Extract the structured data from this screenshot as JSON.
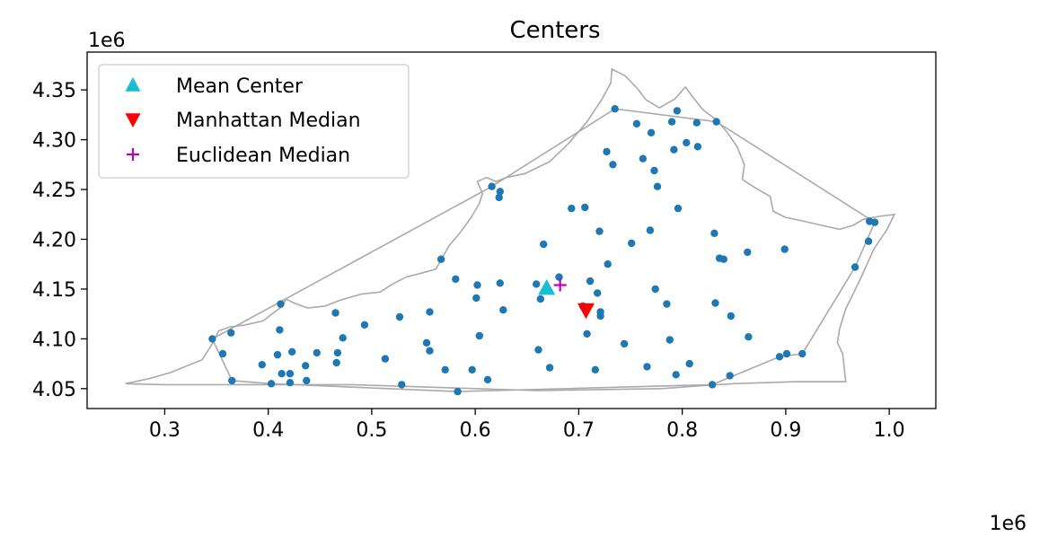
{
  "chart_data": {
    "type": "scatter",
    "title": "Centers",
    "xlabel": "",
    "ylabel": "",
    "x_offset_label": "1e6",
    "y_offset_label": "1e6",
    "xlim": [
      0.225,
      1.045
    ],
    "ylim": [
      4.03,
      4.388
    ],
    "xticks": [
      0.3,
      0.4,
      0.5,
      0.6,
      0.7,
      0.8,
      0.9,
      1.0
    ],
    "xtick_labels": [
      "0.3",
      "0.4",
      "0.5",
      "0.6",
      "0.7",
      "0.8",
      "0.9",
      "1.0"
    ],
    "yticks": [
      4.05,
      4.1,
      4.15,
      4.2,
      4.25,
      4.3,
      4.35
    ],
    "ytick_labels": [
      "4.05",
      "4.10",
      "4.15",
      "4.20",
      "4.25",
      "4.30",
      "4.35"
    ],
    "grid": false,
    "legend_position": "top-left",
    "colors": {
      "points": "#1f77b4",
      "mean_center": "#17becf",
      "manhattan_median": "#ff0000",
      "euclidean_median": "#bf00bf",
      "outline": "#aaaaaa"
    },
    "legend": [
      {
        "label": "Mean Center",
        "marker": "triangle-up",
        "color": "#17becf"
      },
      {
        "label": "Manhattan Median",
        "marker": "triangle-down",
        "color": "#ff0000"
      },
      {
        "label": "Euclidean Median",
        "marker": "plus",
        "color": "#bf00bf"
      }
    ],
    "centers": {
      "mean_center": {
        "x": 0.669,
        "y": 4.151
      },
      "manhattan_median": {
        "x": 0.707,
        "y": 4.129
      },
      "euclidean_median": {
        "x": 0.682,
        "y": 4.154
      }
    },
    "points": [
      {
        "x": 0.346,
        "y": 4.1
      },
      {
        "x": 0.356,
        "y": 4.085
      },
      {
        "x": 0.364,
        "y": 4.106
      },
      {
        "x": 0.365,
        "y": 4.058
      },
      {
        "x": 0.394,
        "y": 4.074
      },
      {
        "x": 0.403,
        "y": 4.055
      },
      {
        "x": 0.409,
        "y": 4.084
      },
      {
        "x": 0.411,
        "y": 4.109
      },
      {
        "x": 0.412,
        "y": 4.135
      },
      {
        "x": 0.413,
        "y": 4.065
      },
      {
        "x": 0.421,
        "y": 4.065
      },
      {
        "x": 0.421,
        "y": 4.056
      },
      {
        "x": 0.423,
        "y": 4.087
      },
      {
        "x": 0.436,
        "y": 4.073
      },
      {
        "x": 0.437,
        "y": 4.058
      },
      {
        "x": 0.447,
        "y": 4.086
      },
      {
        "x": 0.465,
        "y": 4.126
      },
      {
        "x": 0.466,
        "y": 4.076
      },
      {
        "x": 0.467,
        "y": 4.086
      },
      {
        "x": 0.472,
        "y": 4.101
      },
      {
        "x": 0.493,
        "y": 4.114
      },
      {
        "x": 0.513,
        "y": 4.08
      },
      {
        "x": 0.527,
        "y": 4.122
      },
      {
        "x": 0.529,
        "y": 4.054
      },
      {
        "x": 0.553,
        "y": 4.096
      },
      {
        "x": 0.556,
        "y": 4.088
      },
      {
        "x": 0.556,
        "y": 4.127
      },
      {
        "x": 0.567,
        "y": 4.18
      },
      {
        "x": 0.571,
        "y": 4.069
      },
      {
        "x": 0.581,
        "y": 4.16
      },
      {
        "x": 0.583,
        "y": 4.047
      },
      {
        "x": 0.597,
        "y": 4.069
      },
      {
        "x": 0.601,
        "y": 4.141
      },
      {
        "x": 0.602,
        "y": 4.154
      },
      {
        "x": 0.604,
        "y": 4.103
      },
      {
        "x": 0.612,
        "y": 4.059
      },
      {
        "x": 0.616,
        "y": 4.253
      },
      {
        "x": 0.623,
        "y": 4.242
      },
      {
        "x": 0.624,
        "y": 4.248
      },
      {
        "x": 0.624,
        "y": 4.156
      },
      {
        "x": 0.627,
        "y": 4.129
      },
      {
        "x": 0.659,
        "y": 4.155
      },
      {
        "x": 0.661,
        "y": 4.089
      },
      {
        "x": 0.663,
        "y": 4.14
      },
      {
        "x": 0.666,
        "y": 4.195
      },
      {
        "x": 0.672,
        "y": 4.071
      },
      {
        "x": 0.681,
        "y": 4.162
      },
      {
        "x": 0.693,
        "y": 4.231
      },
      {
        "x": 0.704,
        "y": 4.133
      },
      {
        "x": 0.706,
        "y": 4.232
      },
      {
        "x": 0.708,
        "y": 4.105
      },
      {
        "x": 0.711,
        "y": 4.158
      },
      {
        "x": 0.716,
        "y": 4.069
      },
      {
        "x": 0.718,
        "y": 4.146
      },
      {
        "x": 0.72,
        "y": 4.208
      },
      {
        "x": 0.721,
        "y": 4.127
      },
      {
        "x": 0.721,
        "y": 4.123
      },
      {
        "x": 0.727,
        "y": 4.288
      },
      {
        "x": 0.728,
        "y": 4.175
      },
      {
        "x": 0.733,
        "y": 4.275
      },
      {
        "x": 0.735,
        "y": 4.331
      },
      {
        "x": 0.744,
        "y": 4.095
      },
      {
        "x": 0.751,
        "y": 4.196
      },
      {
        "x": 0.756,
        "y": 4.316
      },
      {
        "x": 0.762,
        "y": 4.281
      },
      {
        "x": 0.766,
        "y": 4.072
      },
      {
        "x": 0.769,
        "y": 4.209
      },
      {
        "x": 0.77,
        "y": 4.307
      },
      {
        "x": 0.773,
        "y": 4.269
      },
      {
        "x": 0.774,
        "y": 4.15
      },
      {
        "x": 0.776,
        "y": 4.253
      },
      {
        "x": 0.785,
        "y": 4.135
      },
      {
        "x": 0.788,
        "y": 4.099
      },
      {
        "x": 0.79,
        "y": 4.318
      },
      {
        "x": 0.792,
        "y": 4.29
      },
      {
        "x": 0.794,
        "y": 4.064
      },
      {
        "x": 0.795,
        "y": 4.329
      },
      {
        "x": 0.796,
        "y": 4.231
      },
      {
        "x": 0.804,
        "y": 4.297
      },
      {
        "x": 0.807,
        "y": 4.075
      },
      {
        "x": 0.814,
        "y": 4.317
      },
      {
        "x": 0.815,
        "y": 4.293
      },
      {
        "x": 0.829,
        "y": 4.054
      },
      {
        "x": 0.831,
        "y": 4.206
      },
      {
        "x": 0.832,
        "y": 4.136
      },
      {
        "x": 0.833,
        "y": 4.318
      },
      {
        "x": 0.836,
        "y": 4.181
      },
      {
        "x": 0.84,
        "y": 4.18
      },
      {
        "x": 0.846,
        "y": 4.063
      },
      {
        "x": 0.847,
        "y": 4.123
      },
      {
        "x": 0.863,
        "y": 4.187
      },
      {
        "x": 0.864,
        "y": 4.102
      },
      {
        "x": 0.894,
        "y": 4.082
      },
      {
        "x": 0.899,
        "y": 4.19
      },
      {
        "x": 0.901,
        "y": 4.085
      },
      {
        "x": 0.916,
        "y": 4.085
      },
      {
        "x": 0.967,
        "y": 4.172
      },
      {
        "x": 0.98,
        "y": 4.198
      },
      {
        "x": 0.981,
        "y": 4.218
      },
      {
        "x": 0.986,
        "y": 4.217
      }
    ],
    "hull": [
      [
        0.365,
        4.058
      ],
      [
        0.403,
        4.055
      ],
      [
        0.583,
        4.047
      ],
      [
        0.829,
        4.054
      ],
      [
        0.894,
        4.082
      ],
      [
        0.916,
        4.085
      ],
      [
        0.967,
        4.172
      ],
      [
        0.986,
        4.217
      ],
      [
        0.833,
        4.318
      ],
      [
        0.735,
        4.331
      ],
      [
        0.616,
        4.253
      ],
      [
        0.346,
        4.1
      ]
    ],
    "state_outline": [
      [
        0.262,
        4.055
      ],
      [
        0.285,
        4.06
      ],
      [
        0.305,
        4.066
      ],
      [
        0.322,
        4.073
      ],
      [
        0.336,
        4.079
      ],
      [
        0.346,
        4.095
      ],
      [
        0.352,
        4.108
      ],
      [
        0.363,
        4.112
      ],
      [
        0.378,
        4.114
      ],
      [
        0.395,
        4.118
      ],
      [
        0.405,
        4.126
      ],
      [
        0.414,
        4.133
      ],
      [
        0.417,
        4.14
      ],
      [
        0.425,
        4.136
      ],
      [
        0.438,
        4.131
      ],
      [
        0.455,
        4.133
      ],
      [
        0.47,
        4.139
      ],
      [
        0.49,
        4.145
      ],
      [
        0.508,
        4.147
      ],
      [
        0.52,
        4.155
      ],
      [
        0.533,
        4.162
      ],
      [
        0.548,
        4.166
      ],
      [
        0.562,
        4.17
      ],
      [
        0.57,
        4.185
      ],
      [
        0.575,
        4.194
      ],
      [
        0.585,
        4.206
      ],
      [
        0.596,
        4.222
      ],
      [
        0.604,
        4.236
      ],
      [
        0.607,
        4.246
      ],
      [
        0.602,
        4.258
      ],
      [
        0.611,
        4.262
      ],
      [
        0.62,
        4.258
      ],
      [
        0.63,
        4.262
      ],
      [
        0.648,
        4.266
      ],
      [
        0.672,
        4.278
      ],
      [
        0.69,
        4.296
      ],
      [
        0.708,
        4.318
      ],
      [
        0.722,
        4.34
      ],
      [
        0.731,
        4.357
      ],
      [
        0.732,
        4.371
      ],
      [
        0.745,
        4.364
      ],
      [
        0.757,
        4.351
      ],
      [
        0.765,
        4.34
      ],
      [
        0.778,
        4.332
      ],
      [
        0.793,
        4.341
      ],
      [
        0.803,
        4.353
      ],
      [
        0.81,
        4.343
      ],
      [
        0.82,
        4.33
      ],
      [
        0.833,
        4.32
      ],
      [
        0.843,
        4.308
      ],
      [
        0.853,
        4.293
      ],
      [
        0.86,
        4.275
      ],
      [
        0.858,
        4.26
      ],
      [
        0.87,
        4.252
      ],
      [
        0.885,
        4.243
      ],
      [
        0.888,
        4.228
      ],
      [
        0.9,
        4.222
      ],
      [
        0.918,
        4.218
      ],
      [
        0.935,
        4.214
      ],
      [
        0.952,
        4.21
      ],
      [
        0.965,
        4.214
      ],
      [
        0.975,
        4.22
      ],
      [
        0.99,
        4.223
      ],
      [
        1.005,
        4.225
      ],
      [
        0.998,
        4.21
      ],
      [
        0.985,
        4.19
      ],
      [
        0.973,
        4.162
      ],
      [
        0.958,
        4.13
      ],
      [
        0.952,
        4.11
      ],
      [
        0.95,
        4.096
      ],
      [
        0.955,
        4.085
      ],
      [
        0.958,
        4.057
      ],
      [
        0.935,
        4.057
      ],
      [
        0.91,
        4.057
      ],
      [
        0.88,
        4.056
      ],
      [
        0.85,
        4.055
      ],
      [
        0.82,
        4.053
      ],
      [
        0.78,
        4.05
      ],
      [
        0.72,
        4.049
      ],
      [
        0.66,
        4.048
      ],
      [
        0.6,
        4.05
      ],
      [
        0.54,
        4.052
      ],
      [
        0.48,
        4.054
      ],
      [
        0.42,
        4.054
      ],
      [
        0.36,
        4.054
      ],
      [
        0.3,
        4.054
      ],
      [
        0.262,
        4.055
      ]
    ]
  }
}
